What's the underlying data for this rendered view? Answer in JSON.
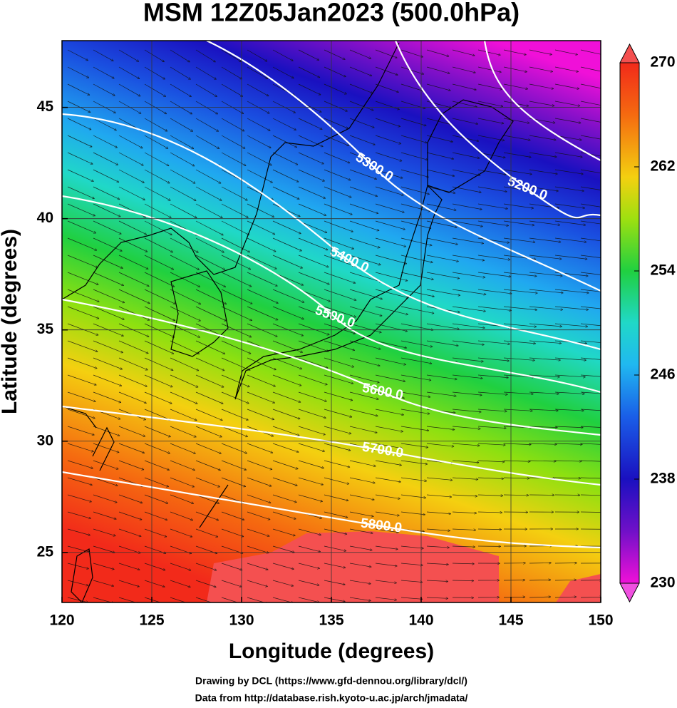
{
  "map": {
    "title": "MSM 12Z05Jan2023 (500.0hPa)",
    "x_label": "Longitude (degrees)",
    "y_label": "Latitude  (degrees)",
    "xlim": [
      120,
      150
    ],
    "ylim": [
      22.75,
      48
    ],
    "xticks": [
      120,
      125,
      130,
      135,
      140,
      145,
      150
    ],
    "yticks": [
      25,
      30,
      35,
      40,
      45
    ],
    "colorbar": {
      "lim": [
        230,
        270
      ],
      "ticks": [
        230,
        238,
        246,
        254,
        262,
        270
      ]
    },
    "contour_labels": [
      "5200.0",
      "5300.0",
      "5400.0",
      "5500.0",
      "5600.0",
      "5700.0",
      "5800.0"
    ]
  },
  "credits": [
    "Drawing by DCL (https://www.gfd-dennou.org/library/dcl/)",
    "Data from http://database.rish.kyoto-u.ac.jp/arch/jmadata/"
  ]
}
